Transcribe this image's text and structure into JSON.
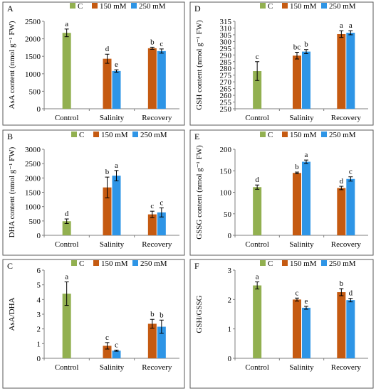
{
  "colors": {
    "C": "#92b050",
    "150 mM": "#c55a11",
    "250 mM": "#2e95e6",
    "frame": "#595959",
    "axis": "#7f7f7f"
  },
  "legend": [
    "C",
    "150 mM",
    "250 mM"
  ],
  "chart_data": [
    {
      "id": "A",
      "panel_label": "A",
      "type": "bar",
      "ylabel": "AsA content (nmol g⁻¹ FW)",
      "ylim": [
        0,
        2500
      ],
      "yticks": [
        "0",
        "500",
        "1000",
        "1500",
        "2000",
        "2500"
      ],
      "categories": [
        "Control",
        "Salinity",
        "Recovery"
      ],
      "series": [
        {
          "name": "C",
          "values": [
            2170,
            null,
            null
          ],
          "errors": [
            110,
            null,
            null
          ],
          "letters": [
            "a",
            null,
            null
          ]
        },
        {
          "name": "150 mM",
          "values": [
            null,
            1430,
            1730
          ],
          "errors": [
            null,
            130,
            30
          ],
          "letters": [
            null,
            "d",
            "b"
          ]
        },
        {
          "name": "250 mM",
          "values": [
            null,
            1080,
            1650
          ],
          "errors": [
            null,
            35,
            60
          ],
          "letters": [
            null,
            "e",
            "c"
          ]
        }
      ]
    },
    {
      "id": "D",
      "panel_label": "D",
      "type": "bar",
      "ylabel": "GSH content (nmol g⁻¹ FW)",
      "ylim": [
        250,
        315
      ],
      "yticks": [
        "250",
        "255",
        "260",
        "265",
        "270",
        "275",
        "280",
        "285",
        "290",
        "295",
        "300",
        "305",
        "310",
        "315"
      ],
      "categories": [
        "Control",
        "Salinity",
        "Recovery"
      ],
      "series": [
        {
          "name": "C",
          "values": [
            278,
            null,
            null
          ],
          "errors": [
            7,
            null,
            null
          ],
          "letters": [
            "c",
            null,
            null
          ]
        },
        {
          "name": "150 mM",
          "values": [
            null,
            289.5,
            305.5
          ],
          "errors": [
            null,
            2.5,
            2.5
          ],
          "letters": [
            null,
            "bc",
            "a"
          ]
        },
        {
          "name": "250 mM",
          "values": [
            null,
            292.5,
            306.5
          ],
          "errors": [
            null,
            1.5,
            1.5
          ],
          "letters": [
            null,
            "b",
            "a"
          ]
        }
      ]
    },
    {
      "id": "B",
      "panel_label": "B",
      "type": "bar",
      "ylabel": "DHA content (nmol g⁻¹ FW)",
      "ylim": [
        0,
        3000
      ],
      "yticks": [
        "0",
        "500",
        "1000",
        "1500",
        "2000",
        "2500",
        "3000"
      ],
      "categories": [
        "Control",
        "Salinity",
        "Recovery"
      ],
      "series": [
        {
          "name": "C",
          "values": [
            490,
            null,
            null
          ],
          "errors": [
            80,
            null,
            null
          ],
          "letters": [
            "d",
            null,
            null
          ]
        },
        {
          "name": "150 mM",
          "values": [
            null,
            1670,
            730
          ],
          "errors": [
            null,
            360,
            110
          ],
          "letters": [
            null,
            "b",
            "c"
          ]
        },
        {
          "name": "250 mM",
          "values": [
            null,
            2080,
            800
          ],
          "errors": [
            null,
            180,
            160
          ],
          "letters": [
            null,
            "a",
            "c"
          ]
        }
      ]
    },
    {
      "id": "E",
      "panel_label": "E",
      "type": "bar",
      "ylabel": "GSSG content (nmol g⁻¹ FW)",
      "ylim": [
        0,
        200
      ],
      "yticks": [
        "0",
        "50",
        "100",
        "150",
        "200"
      ],
      "categories": [
        "Control",
        "Salinity",
        "Recovery"
      ],
      "series": [
        {
          "name": "C",
          "values": [
            112,
            null,
            null
          ],
          "errors": [
            5,
            null,
            null
          ],
          "letters": [
            "d",
            null,
            null
          ]
        },
        {
          "name": "150 mM",
          "values": [
            null,
            145,
            110
          ],
          "errors": [
            null,
            2,
            4
          ],
          "letters": [
            null,
            "b",
            "d"
          ]
        },
        {
          "name": "250 mM",
          "values": [
            null,
            171,
            131
          ],
          "errors": [
            null,
            4,
            5
          ],
          "letters": [
            null,
            "a",
            "c"
          ]
        }
      ]
    },
    {
      "id": "C",
      "panel_label": "C",
      "type": "bar",
      "ylabel": "AsA/DHA",
      "ylim": [
        0,
        6
      ],
      "yticks": [
        "0",
        "1",
        "2",
        "3",
        "4",
        "5",
        "6"
      ],
      "categories": [
        "Control",
        "Salinity",
        "Recovery"
      ],
      "series": [
        {
          "name": "C",
          "values": [
            4.4,
            null,
            null
          ],
          "errors": [
            0.8,
            null,
            null
          ],
          "letters": [
            "a",
            null,
            null
          ]
        },
        {
          "name": "150 mM",
          "values": [
            null,
            0.85,
            2.35
          ],
          "errors": [
            null,
            0.22,
            0.3
          ],
          "letters": [
            null,
            "c",
            "b"
          ]
        },
        {
          "name": "250 mM",
          "values": [
            null,
            0.52,
            2.15
          ],
          "errors": [
            null,
            0.04,
            0.45
          ],
          "letters": [
            null,
            "c",
            "b"
          ]
        }
      ]
    },
    {
      "id": "F",
      "panel_label": "F",
      "type": "bar",
      "ylabel": "GSH/GSSG",
      "ylim": [
        0,
        3
      ],
      "yticks": [
        "0",
        "1",
        "2",
        "3"
      ],
      "categories": [
        "Control",
        "Salinity",
        "Recovery"
      ],
      "series": [
        {
          "name": "C",
          "values": [
            2.48,
            null,
            null
          ],
          "errors": [
            0.12,
            null,
            null
          ],
          "letters": [
            "a",
            null,
            null
          ]
        },
        {
          "name": "150 mM",
          "values": [
            null,
            2.0,
            2.25
          ],
          "errors": [
            null,
            0.05,
            0.12
          ],
          "letters": [
            null,
            "c",
            "b"
          ]
        },
        {
          "name": "250 mM",
          "values": [
            null,
            1.72,
            1.98
          ],
          "errors": [
            null,
            0.05,
            0.06
          ],
          "letters": [
            null,
            "e",
            "d"
          ]
        }
      ]
    }
  ]
}
